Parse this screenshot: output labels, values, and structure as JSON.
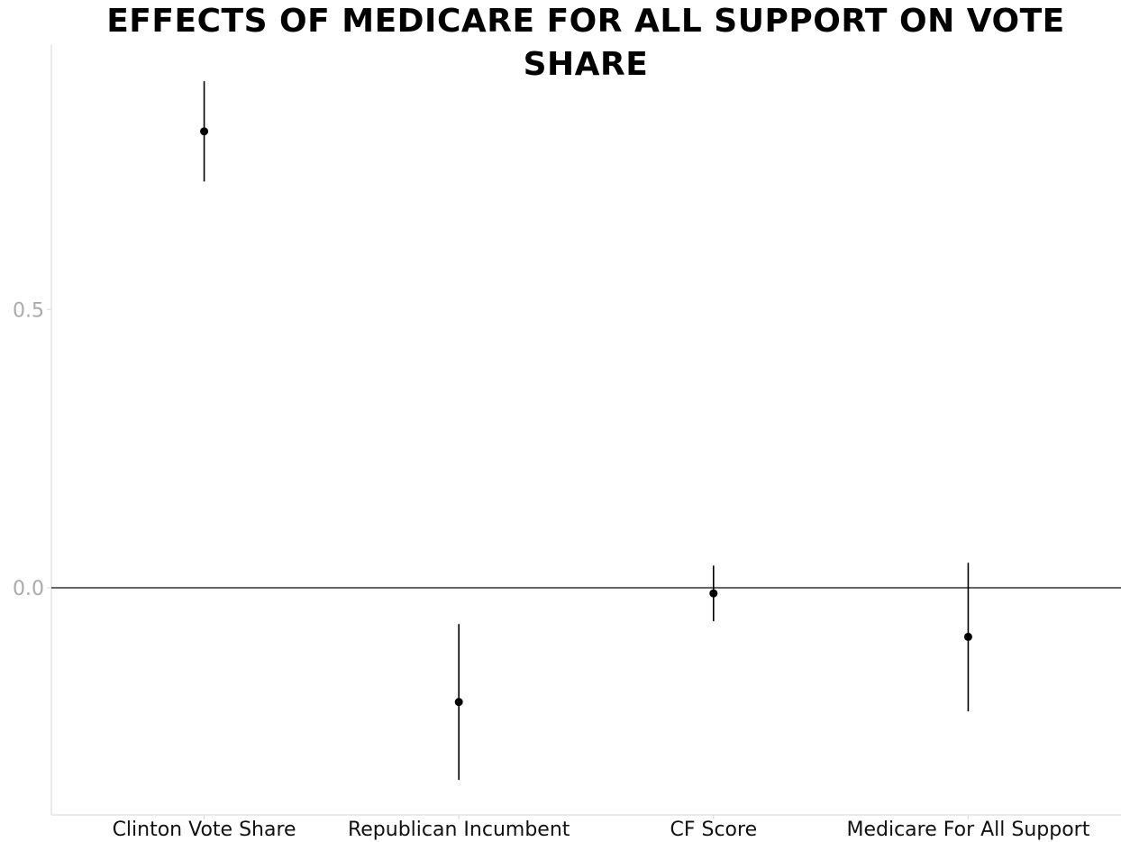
{
  "chart_data": {
    "type": "scatter",
    "title": "EFFECTS OF MEDICARE FOR ALL SUPPORT ON VOTE SHARE",
    "xlabel": "",
    "ylabel": "",
    "categories": [
      "Clinton Vote Share",
      "Republican Incumbent",
      "CF Score",
      "Medicare For All Support"
    ],
    "estimates": [
      0.82,
      -0.205,
      -0.01,
      -0.088
    ],
    "ci_low": [
      0.73,
      -0.345,
      -0.06,
      -0.222
    ],
    "ci_high": [
      0.91,
      -0.065,
      0.04,
      0.045
    ],
    "y_ticks": [
      0.0,
      0.5
    ],
    "y_tick_labels": [
      "0.0",
      "0.5"
    ],
    "ylim": [
      -0.408,
      0.975
    ],
    "reference_line": 0.0,
    "grid": false,
    "colors": {
      "points": "#000000",
      "axis": "#dddddd",
      "reference": "#333333"
    }
  }
}
